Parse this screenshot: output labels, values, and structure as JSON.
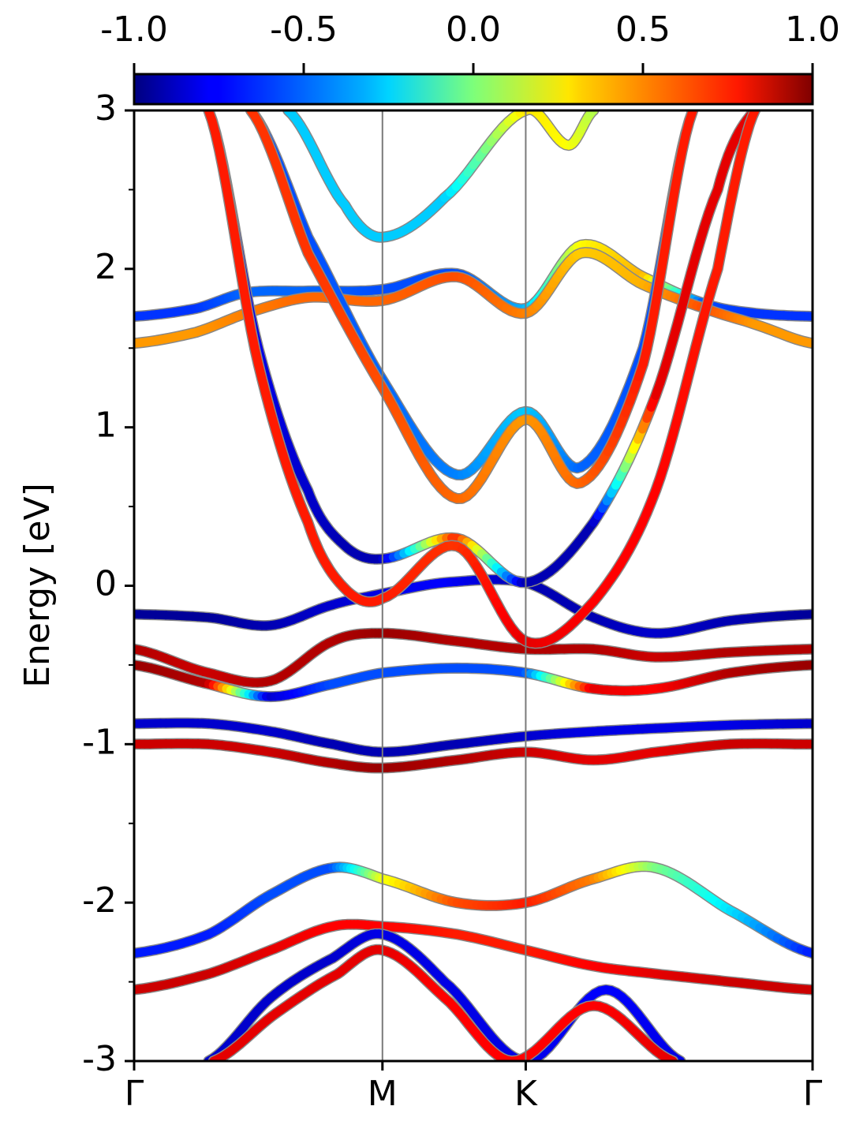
{
  "chart_data": {
    "type": "line",
    "ylabel": "Energy [eV]",
    "ylim": [
      -3,
      3
    ],
    "y_ticks": [
      "-3",
      "-2",
      "-1",
      "0",
      "1",
      "2",
      "3"
    ],
    "y_tick_values": [
      -3,
      -2,
      -1,
      0,
      1,
      2,
      3
    ],
    "y_minor_tick_values": [
      -2.5,
      -1.5,
      -0.5,
      0.5,
      1.5,
      2.5
    ],
    "x_ticks": [
      "Γ",
      "M",
      "K",
      "Γ"
    ],
    "x_tick_positions": [
      0,
      1,
      1.577,
      2.732
    ],
    "xlim": [
      0,
      2.732
    ],
    "grid": false,
    "vertical_lines_at": [
      1,
      1.577
    ],
    "colorbar": {
      "position": "top",
      "colormap": "jet",
      "range": [
        -1,
        1
      ],
      "tick_labels": [
        "-1.0",
        "-0.5",
        "0.0",
        "0.5",
        "1.0"
      ],
      "tick_values": [
        -1,
        -0.5,
        0,
        0.5,
        1
      ]
    },
    "series": [
      {
        "x": [
          0,
          0.3,
          0.55,
          0.8,
          1.0,
          1.25,
          1.577,
          1.85,
          2.1,
          2.4,
          2.732
        ],
        "y": [
          -0.18,
          -0.2,
          -0.25,
          -0.12,
          -0.05,
          0.02,
          0.02,
          -0.2,
          -0.3,
          -0.22,
          -0.18
        ],
        "values": [
          -0.95,
          -0.95,
          -0.9,
          -0.85,
          -0.8,
          -0.75,
          -0.9,
          -0.9,
          -0.85,
          -0.9,
          -0.95
        ]
      },
      {
        "x": [
          0,
          0.3,
          0.55,
          0.8,
          1.0,
          1.3,
          1.577,
          1.85,
          2.1,
          2.4,
          2.732
        ],
        "y": [
          -0.4,
          -0.55,
          -0.6,
          -0.35,
          -0.3,
          -0.35,
          -0.4,
          -0.4,
          -0.45,
          -0.42,
          -0.4
        ],
        "values": [
          0.9,
          0.85,
          0.9,
          0.9,
          0.95,
          0.9,
          0.9,
          0.9,
          0.85,
          0.9,
          0.9
        ]
      },
      {
        "x": [
          0,
          0.3,
          0.55,
          0.8,
          1.0,
          1.3,
          1.577,
          1.85,
          2.1,
          2.4,
          2.732
        ],
        "y": [
          -0.5,
          -0.62,
          -0.7,
          -0.62,
          -0.55,
          -0.52,
          -0.55,
          -0.65,
          -0.65,
          -0.55,
          -0.5
        ],
        "values": [
          0.95,
          0.9,
          -0.85,
          -0.6,
          -0.6,
          -0.6,
          -0.6,
          0.8,
          0.75,
          0.9,
          0.95
        ]
      },
      {
        "x": [
          0,
          0.3,
          0.55,
          0.8,
          1.0,
          1.3,
          1.577,
          1.85,
          2.1,
          2.4,
          2.732
        ],
        "y": [
          -0.87,
          -0.87,
          -0.92,
          -1.0,
          -1.05,
          -1.0,
          -0.95,
          -0.92,
          -0.9,
          -0.88,
          -0.87
        ],
        "values": [
          -0.85,
          -0.85,
          -0.85,
          -0.9,
          -0.9,
          -0.9,
          -0.85,
          -0.8,
          -0.8,
          -0.8,
          -0.85
        ]
      },
      {
        "x": [
          0,
          0.3,
          0.55,
          0.8,
          1.0,
          1.3,
          1.577,
          1.85,
          2.1,
          2.4,
          2.732
        ],
        "y": [
          -1.0,
          -1.0,
          -1.05,
          -1.12,
          -1.15,
          -1.1,
          -1.05,
          -1.1,
          -1.05,
          -1.0,
          -1.0
        ],
        "values": [
          0.85,
          0.85,
          0.85,
          0.9,
          0.95,
          0.9,
          0.85,
          0.8,
          0.8,
          0.85,
          0.85
        ]
      },
      {
        "x": [
          0,
          0.3,
          0.55,
          0.8,
          1.0,
          1.3,
          1.577,
          1.85,
          2.1,
          2.4,
          2.732
        ],
        "y": [
          -2.32,
          -2.2,
          -1.95,
          -1.78,
          -1.85,
          -2.0,
          -2.0,
          -1.85,
          -1.78,
          -2.05,
          -2.32
        ],
        "values": [
          -0.7,
          -0.7,
          -0.6,
          -0.6,
          0.2,
          0.6,
          0.7,
          0.5,
          0.0,
          -0.3,
          -0.7
        ]
      },
      {
        "x": [
          0,
          0.3,
          0.55,
          0.8,
          1.0,
          1.3,
          1.577,
          1.85,
          2.1,
          2.4,
          2.732
        ],
        "y": [
          -2.55,
          -2.45,
          -2.3,
          -2.15,
          -2.15,
          -2.2,
          -2.3,
          -2.4,
          -2.45,
          -2.5,
          -2.55
        ],
        "values": [
          0.85,
          0.85,
          0.8,
          0.75,
          0.75,
          0.7,
          0.7,
          0.75,
          0.8,
          0.85,
          0.85
        ]
      },
      {
        "x": [
          0,
          0.25,
          0.45,
          0.7,
          1.0,
          1.3,
          1.577,
          1.8,
          2.05,
          2.3,
          2.5,
          2.732
        ],
        "y": [
          1.7,
          1.75,
          1.85,
          1.86,
          1.87,
          1.97,
          1.75,
          2.15,
          1.95,
          1.78,
          1.72,
          1.7
        ],
        "values": [
          -0.65,
          -0.65,
          -0.55,
          -0.55,
          -0.6,
          -0.6,
          -0.4,
          0.25,
          0.4,
          -0.6,
          -0.65,
          -0.65
        ]
      },
      {
        "x": [
          0,
          0.25,
          0.45,
          0.7,
          1.0,
          1.3,
          1.577,
          1.8,
          2.05,
          2.3,
          2.5,
          2.732
        ],
        "y": [
          1.53,
          1.6,
          1.72,
          1.82,
          1.8,
          1.95,
          1.72,
          2.1,
          1.9,
          1.75,
          1.65,
          1.53
        ],
        "values": [
          0.45,
          0.45,
          0.5,
          0.55,
          0.55,
          0.6,
          0.5,
          0.35,
          0.4,
          0.6,
          0.45,
          0.45
        ]
      },
      {
        "x": [
          0.3,
          0.5,
          0.7,
          0.85,
          1.0,
          1.3,
          1.577,
          1.85,
          2.1,
          2.35,
          2.5
        ],
        "y": [
          3.0,
          1.5,
          0.6,
          0.25,
          0.17,
          0.3,
          0.02,
          0.4,
          1.2,
          2.5,
          3.0
        ],
        "values": [
          -0.8,
          -0.8,
          -0.85,
          -0.9,
          -0.9,
          0.7,
          -0.9,
          -0.9,
          0.8,
          0.8,
          0.8
        ]
      },
      {
        "x": [
          0.3,
          0.5,
          0.7,
          0.85,
          1.0,
          1.3,
          1.577,
          1.85,
          2.1,
          2.35,
          2.5
        ],
        "y": [
          3.0,
          1.4,
          0.4,
          -0.02,
          -0.08,
          0.25,
          -0.35,
          -0.1,
          0.6,
          2.0,
          3.0
        ],
        "values": [
          0.7,
          0.7,
          0.7,
          0.7,
          0.7,
          0.65,
          0.8,
          0.75,
          0.75,
          0.7,
          0.7
        ]
      },
      {
        "x": [
          0.47,
          0.7,
          1.0,
          1.3,
          1.577,
          1.8,
          2.05,
          2.25
        ],
        "y": [
          3.0,
          2.2,
          1.3,
          0.7,
          1.1,
          0.75,
          1.5,
          3.0
        ],
        "values": [
          -0.6,
          -0.6,
          -0.55,
          -0.5,
          -0.35,
          -0.55,
          -0.6,
          -0.6
        ]
      },
      {
        "x": [
          0.47,
          0.7,
          1.0,
          1.3,
          1.577,
          1.8,
          2.05,
          2.25
        ],
        "y": [
          3.0,
          2.1,
          1.25,
          0.55,
          1.05,
          0.65,
          1.4,
          3.0
        ],
        "values": [
          0.65,
          0.65,
          0.6,
          0.55,
          0.45,
          0.55,
          0.7,
          0.7
        ]
      },
      {
        "x": [
          0.62,
          0.85,
          1.0,
          1.25,
          1.577,
          1.75,
          1.85
        ],
        "y": [
          3.0,
          2.4,
          2.2,
          2.45,
          3.0,
          2.78,
          3.0
        ],
        "values": [
          -0.35,
          -0.35,
          -0.35,
          -0.35,
          0.3,
          0.25,
          0.1
        ]
      },
      {
        "x": [
          0.3,
          0.55,
          0.8,
          1.0,
          1.25,
          1.577,
          1.9,
          2.2
        ],
        "y": [
          -3.0,
          -2.6,
          -2.35,
          -2.2,
          -2.5,
          -3.0,
          -2.55,
          -3.0
        ],
        "values": [
          -0.85,
          -0.85,
          -0.85,
          -0.8,
          -0.8,
          -0.8,
          -0.75,
          -0.8
        ]
      },
      {
        "x": [
          0.32,
          0.57,
          0.82,
          1.0,
          1.25,
          1.52,
          1.85,
          2.17
        ],
        "y": [
          -3.0,
          -2.7,
          -2.45,
          -2.3,
          -2.6,
          -3.0,
          -2.65,
          -3.0
        ],
        "values": [
          0.8,
          0.8,
          0.8,
          0.8,
          0.75,
          0.75,
          0.75,
          0.8
        ]
      }
    ]
  }
}
